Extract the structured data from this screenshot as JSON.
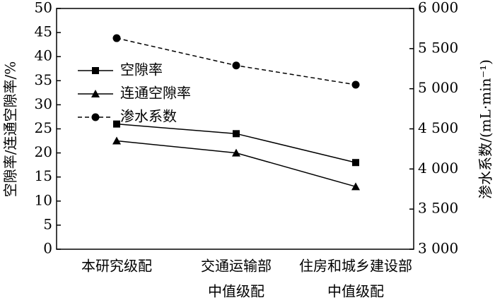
{
  "chart_data": {
    "type": "line",
    "y_label": "空隙率/连通空隙率/%",
    "y2_label": "渗水系数/(mL·min⁻¹)",
    "categories": [
      [
        "本研究级配"
      ],
      [
        "交通运输部",
        "中值级配"
      ],
      [
        "住房和城乡建设部",
        "中值级配"
      ]
    ],
    "series": [
      {
        "name": "空隙率",
        "color": "#000000",
        "marker": "square",
        "dash": false,
        "values": [
          26.0,
          24.0,
          18.0
        ]
      },
      {
        "name": "连通空隙率",
        "color": "#000000",
        "marker": "triangle",
        "dash": false,
        "values": [
          22.5,
          20.0,
          13.0
        ]
      },
      {
        "name": "渗水系数",
        "color": "#000000",
        "marker": "circle",
        "dash": true,
        "axis": "y2",
        "values": [
          5630,
          5290,
          5050
        ]
      }
    ],
    "ylim": [
      0,
      50
    ],
    "yticks": [
      0,
      5,
      10,
      15,
      20,
      25,
      30,
      35,
      40,
      45,
      50
    ],
    "y2lim": [
      3000,
      6000
    ],
    "y2ticks": [
      {
        "value": 3000,
        "label": "3 000"
      },
      {
        "value": 3500,
        "label": "3 500"
      },
      {
        "value": 4000,
        "label": "4 000"
      },
      {
        "value": 4500,
        "label": "4 500"
      },
      {
        "value": 5000,
        "label": "5 000"
      },
      {
        "value": 5500,
        "label": "5 500"
      },
      {
        "value": 6000,
        "label": "6 000"
      }
    ],
    "legend": "upper left"
  }
}
